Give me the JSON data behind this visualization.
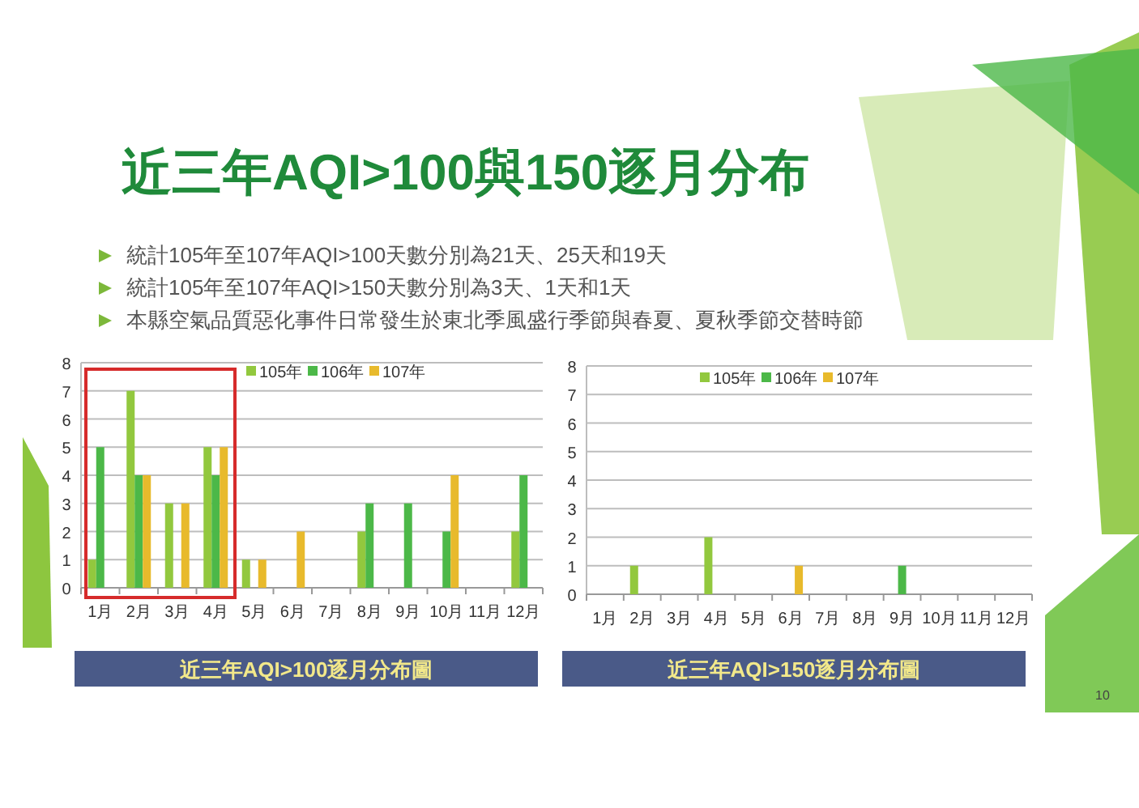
{
  "chart_data": [
    {
      "type": "bar",
      "title": "近三年AQI>100與150逐月分布",
      "annotations": [
        "統計105年至107年AQI>100天數分別為21天、25天和19天",
        "統計105年至107年AQI>150天數分別為3天、1天和1天",
        "本縣空氣品質惡化事件日常發生於東北季風盛行季節與春夏、夏秋季節交替時節",
        "近三年AQI>100逐月分布圖"
      ],
      "categories": [
        "1月",
        "2月",
        "3月",
        "4月",
        "5月",
        "6月",
        "7月",
        "8月",
        "9月",
        "10月",
        "11月",
        "12月"
      ],
      "series": [
        {
          "name": "105年",
          "color": "#92c83e",
          "values": [
            1,
            7,
            3,
            5,
            1,
            0,
            0,
            2,
            0,
            0,
            0,
            2
          ]
        },
        {
          "name": "106年",
          "color": "#4cb848",
          "values": [
            5,
            4,
            0,
            4,
            0,
            0,
            0,
            3,
            3,
            2,
            0,
            4
          ]
        },
        {
          "name": "107年",
          "color": "#e8ba2c",
          "values": [
            0,
            4,
            3,
            5,
            1,
            2,
            0,
            0,
            0,
            4,
            0,
            0
          ]
        }
      ],
      "ylim": [
        0,
        8
      ],
      "yticks": [
        0,
        1,
        2,
        3,
        4,
        5,
        6,
        7,
        8
      ],
      "grid": "y",
      "legend": "top"
    },
    {
      "type": "bar",
      "title": "近三年AQI>150逐月分布圖",
      "annotations": [
        "10"
      ],
      "categories": [
        "1月",
        "2月",
        "3月",
        "4月",
        "5月",
        "6月",
        "7月",
        "8月",
        "9月",
        "10月",
        "11月",
        "12月"
      ],
      "series": [
        {
          "name": "105年",
          "color": "#92c83e",
          "values": [
            0,
            1,
            0,
            2,
            0,
            0,
            0,
            0,
            0,
            0,
            0,
            0
          ]
        },
        {
          "name": "106年",
          "color": "#4cb848",
          "values": [
            0,
            0,
            0,
            0,
            0,
            0,
            0,
            0,
            1,
            0,
            0,
            0
          ]
        },
        {
          "name": "107年",
          "color": "#e8ba2c",
          "values": [
            0,
            0,
            0,
            0,
            0,
            1,
            0,
            0,
            0,
            0,
            0,
            0
          ]
        }
      ],
      "ylim": [
        0,
        8
      ],
      "yticks": [
        0,
        1,
        2,
        3,
        4,
        5,
        6,
        7,
        8
      ],
      "grid": "y",
      "legend": "top"
    }
  ]
}
